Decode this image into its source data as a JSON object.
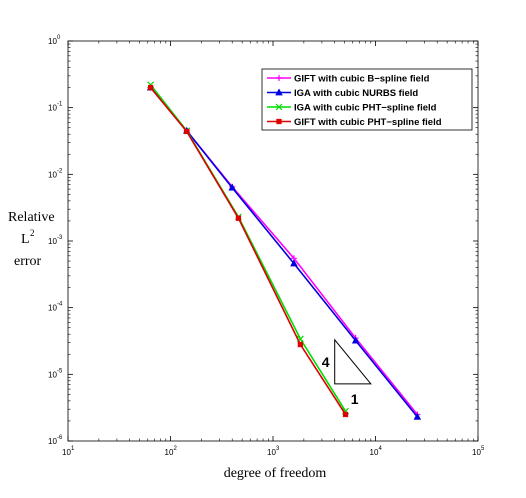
{
  "chart_data": {
    "type": "line",
    "xscale": "log",
    "yscale": "log",
    "xlim": [
      10,
      100000
    ],
    "ylim": [
      1e-06,
      1
    ],
    "xlabel": "degree of freedom",
    "ylabel_lines": [
      "Relative",
      "L",
      "error"
    ],
    "ylabel_superscript": "2",
    "xticks": [
      {
        "base": "10",
        "exp": "1",
        "value": 10
      },
      {
        "base": "10",
        "exp": "2",
        "value": 100
      },
      {
        "base": "10",
        "exp": "3",
        "value": 1000
      },
      {
        "base": "10",
        "exp": "4",
        "value": 10000
      },
      {
        "base": "10",
        "exp": "5",
        "value": 100000
      }
    ],
    "yticks": [
      {
        "base": "10",
        "exp": "0",
        "value": 1
      },
      {
        "base": "10",
        "exp": "-1",
        "value": 0.1
      },
      {
        "base": "10",
        "exp": "-2",
        "value": 0.01
      },
      {
        "base": "10",
        "exp": "-3",
        "value": 0.001
      },
      {
        "base": "10",
        "exp": "-4",
        "value": 0.0001
      },
      {
        "base": "10",
        "exp": "-5",
        "value": 1e-05
      },
      {
        "base": "10",
        "exp": "-6",
        "value": 1e-06
      }
    ],
    "grid": false,
    "legend_position": "top-right",
    "series": [
      {
        "name": "GIFT with cubic B−spline field",
        "color": "#ff00ff",
        "marker": "plus",
        "x": [
          64,
          144,
          400,
          1600,
          6400,
          25600
        ],
        "y": [
          0.2,
          0.045,
          0.0065,
          0.00055,
          3.5e-05,
          2.5e-06
        ]
      },
      {
        "name": "IGA with cubic NURBS field",
        "color": "#0000e0",
        "marker": "triangle",
        "x": [
          64,
          144,
          400,
          1600,
          6400,
          25600
        ],
        "y": [
          0.2,
          0.045,
          0.0063,
          0.00046,
          3.2e-05,
          2.3e-06
        ]
      },
      {
        "name": "IGA with cubic PHT−spline field",
        "color": "#00dd00",
        "marker": "x",
        "x": [
          64,
          144,
          460,
          1850,
          5100
        ],
        "y": [
          0.22,
          0.045,
          0.0023,
          3.4e-05,
          2.8e-06
        ]
      },
      {
        "name": "GIFT with cubic PHT−spline field",
        "color": "#dd0000",
        "marker": "square",
        "x": [
          64,
          144,
          460,
          1850,
          5100
        ],
        "y": [
          0.2,
          0.044,
          0.0022,
          2.8e-05,
          2.5e-06
        ]
      }
    ],
    "slope_triangle": {
      "rise_label": "4",
      "run_label": "1",
      "vertices": [
        [
          4000,
          3.3e-05
        ],
        [
          4000,
          7.2e-06
        ],
        [
          9000,
          7.2e-06
        ]
      ]
    }
  }
}
